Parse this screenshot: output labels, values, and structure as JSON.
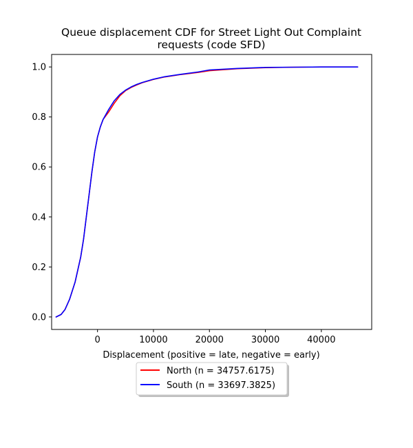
{
  "chart_data": {
    "type": "line",
    "title_lines": [
      "Queue displacement CDF for Street Light Out Complaint",
      "requests (code SFD)"
    ],
    "xlabel": "Displacement (positive = late, negative = early)",
    "ylabel": "",
    "xlim": [
      -8200,
      49000
    ],
    "ylim": [
      -0.05,
      1.05
    ],
    "x_ticks": [
      0,
      10000,
      20000,
      30000,
      40000
    ],
    "y_ticks": [
      0.0,
      0.2,
      0.4,
      0.6,
      0.8,
      1.0
    ],
    "x_tick_labels": [
      "0",
      "10000",
      "20000",
      "30000",
      "40000"
    ],
    "y_tick_labels": [
      "0.0",
      "0.2",
      "0.4",
      "0.6",
      "0.8",
      "1.0"
    ],
    "grid": false,
    "legend_position": "below",
    "series": [
      {
        "name": "North (n = 34757.6175)",
        "color": "#ff0000",
        "x": [
          -7400,
          -6500,
          -5800,
          -5000,
          -4000,
          -3000,
          -2500,
          -2000,
          -1500,
          -1000,
          -500,
          0,
          500,
          1000,
          2000,
          3000,
          4000,
          5000,
          6000,
          7000,
          8000,
          10000,
          12000,
          15000,
          18000,
          20000,
          25000,
          30000,
          35000,
          40000,
          46500
        ],
        "y": [
          0.0,
          0.01,
          0.03,
          0.07,
          0.14,
          0.24,
          0.31,
          0.4,
          0.49,
          0.58,
          0.66,
          0.72,
          0.76,
          0.79,
          0.82,
          0.855,
          0.885,
          0.905,
          0.918,
          0.928,
          0.937,
          0.95,
          0.96,
          0.97,
          0.978,
          0.985,
          0.993,
          0.997,
          0.999,
          1.0,
          1.0
        ]
      },
      {
        "name": "South (n = 33697.3825)",
        "color": "#0000ff",
        "x": [
          -7400,
          -6500,
          -5800,
          -5000,
          -4000,
          -3000,
          -2500,
          -2000,
          -1500,
          -1000,
          -500,
          0,
          500,
          1000,
          2000,
          3000,
          4000,
          5000,
          6000,
          7000,
          8000,
          10000,
          12000,
          15000,
          18000,
          20000,
          25000,
          30000,
          35000,
          40000,
          46500
        ],
        "y": [
          0.0,
          0.01,
          0.03,
          0.07,
          0.14,
          0.24,
          0.31,
          0.4,
          0.49,
          0.58,
          0.66,
          0.72,
          0.76,
          0.79,
          0.83,
          0.865,
          0.89,
          0.907,
          0.92,
          0.93,
          0.938,
          0.951,
          0.961,
          0.971,
          0.98,
          0.988,
          0.994,
          0.998,
          0.999,
          1.0,
          1.0
        ]
      }
    ]
  }
}
